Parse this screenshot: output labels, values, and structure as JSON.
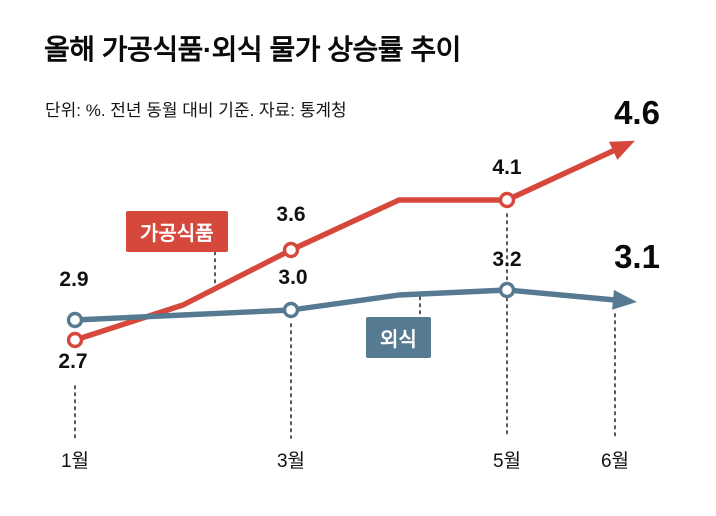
{
  "header": {
    "title": "올해 가공식품·외식 물가 상승률 추이",
    "subtitle": "단위: %. 전년 동월 대비 기준. 자료: 통계청"
  },
  "chart_data": {
    "type": "line",
    "title": "올해 가공식품·외식 물가 상승률 추이",
    "unit_note": "단위: %. 전년 동월 대비 기준. 자료: 통계청",
    "x": [
      1,
      2,
      3,
      4,
      5,
      6
    ],
    "x_unit": "월",
    "x_tick_labels": {
      "m1": "1월",
      "m3": "3월",
      "m5": "5월",
      "m6": "6월"
    },
    "marker_months": [
      1,
      3,
      5
    ],
    "ylim": [
      2.4,
      5.0
    ],
    "legend_position": "on-chart-labels",
    "grid": false,
    "series": [
      {
        "name": "가공식품",
        "color": "#d6483c",
        "values": [
          2.7,
          3.05,
          3.6,
          4.1,
          4.1,
          4.6
        ],
        "point_labels": {
          "m1": "2.7",
          "m3": "3.6",
          "m5": "4.1",
          "m6": "4.6"
        }
      },
      {
        "name": "외식",
        "color": "#567a92",
        "values": [
          2.9,
          2.95,
          3.0,
          3.15,
          3.2,
          3.1
        ],
        "point_labels": {
          "m1": "2.9",
          "m3": "3.0",
          "m5": "3.2",
          "m6": "3.1"
        }
      }
    ]
  }
}
